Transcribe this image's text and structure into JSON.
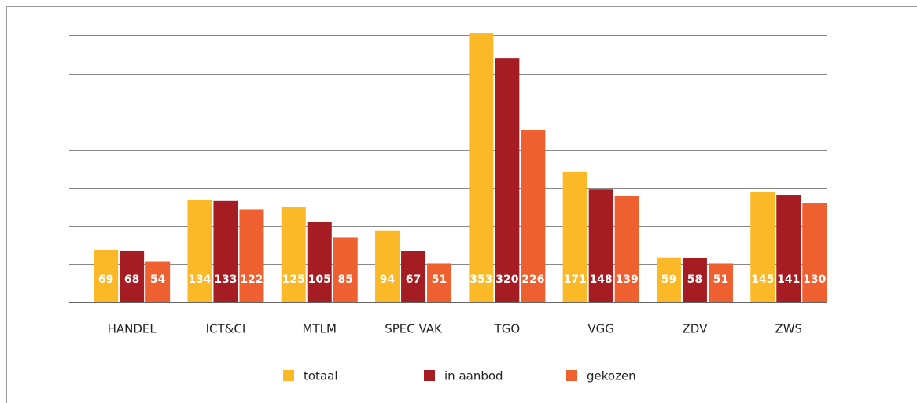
{
  "chart_data": {
    "type": "bar",
    "categories": [
      "HANDEL",
      "ICT&CI",
      "MTLM",
      "SPEC VAK",
      "TGO",
      "VGG",
      "ZDV",
      "ZWS"
    ],
    "series": [
      {
        "name": "totaal",
        "color": "#fbb927",
        "values": [
          69,
          134,
          125,
          94,
          353,
          171,
          59,
          145
        ]
      },
      {
        "name": "in aanbod",
        "color": "#a51d23",
        "values": [
          68,
          133,
          105,
          67,
          320,
          148,
          58,
          141
        ]
      },
      {
        "name": "gekozen",
        "color": "#ef6030",
        "values": [
          54,
          122,
          85,
          51,
          226,
          139,
          51,
          130
        ]
      }
    ],
    "ylim": [
      0,
      350
    ],
    "yticks": [
      0,
      50,
      100,
      150,
      200,
      250,
      300,
      350
    ],
    "grid": true
  }
}
